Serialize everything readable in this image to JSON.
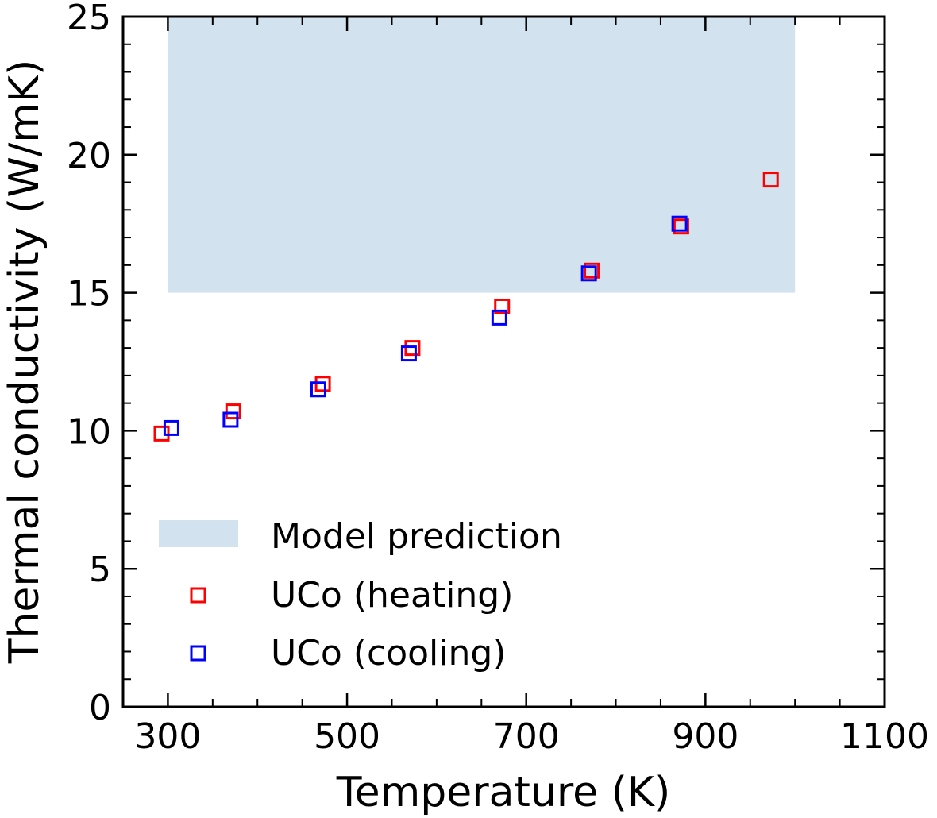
{
  "chart_data": {
    "type": "scatter",
    "title": "",
    "xlabel": "Temperature (K)",
    "ylabel": "Thermal conductivity (W/mK)",
    "xlim": [
      250,
      1100
    ],
    "ylim": [
      0,
      25
    ],
    "x_ticks": [
      300,
      500,
      700,
      900,
      1100
    ],
    "y_ticks": [
      0,
      5,
      10,
      15,
      20,
      25
    ],
    "x_tick_labels": [
      "300",
      "500",
      "700",
      "900",
      "1100"
    ],
    "y_tick_labels": [
      "0",
      "5",
      "10",
      "15",
      "20",
      "25"
    ],
    "grid": false,
    "legend_position": "lower-left",
    "shaded_regions": [
      {
        "name": "Model prediction",
        "x": [
          300,
          1000
        ],
        "y": [
          15,
          25
        ],
        "color": "#d2e3ef"
      }
    ],
    "series": [
      {
        "name": "UCo (heating)",
        "marker": "open-square",
        "color": "#ff0000",
        "x": [
          293,
          373,
          473,
          573,
          673,
          773,
          873,
          973
        ],
        "y": [
          9.9,
          10.7,
          11.7,
          13.0,
          14.5,
          15.8,
          17.4,
          19.1
        ]
      },
      {
        "name": "UCo (cooling)",
        "marker": "open-square",
        "color": "#0000ff",
        "x": [
          304,
          370,
          468,
          569,
          670,
          770,
          871
        ],
        "y": [
          10.1,
          10.4,
          11.5,
          12.8,
          14.1,
          15.7,
          17.5
        ]
      }
    ]
  },
  "legend": {
    "items": [
      {
        "label": "Model prediction",
        "kind": "patch",
        "color": "#d2e3ef"
      },
      {
        "label": "UCo (heating)",
        "kind": "open-square",
        "color": "#ff0000"
      },
      {
        "label": "UCo (cooling)",
        "kind": "open-square",
        "color": "#0000ff"
      }
    ]
  }
}
